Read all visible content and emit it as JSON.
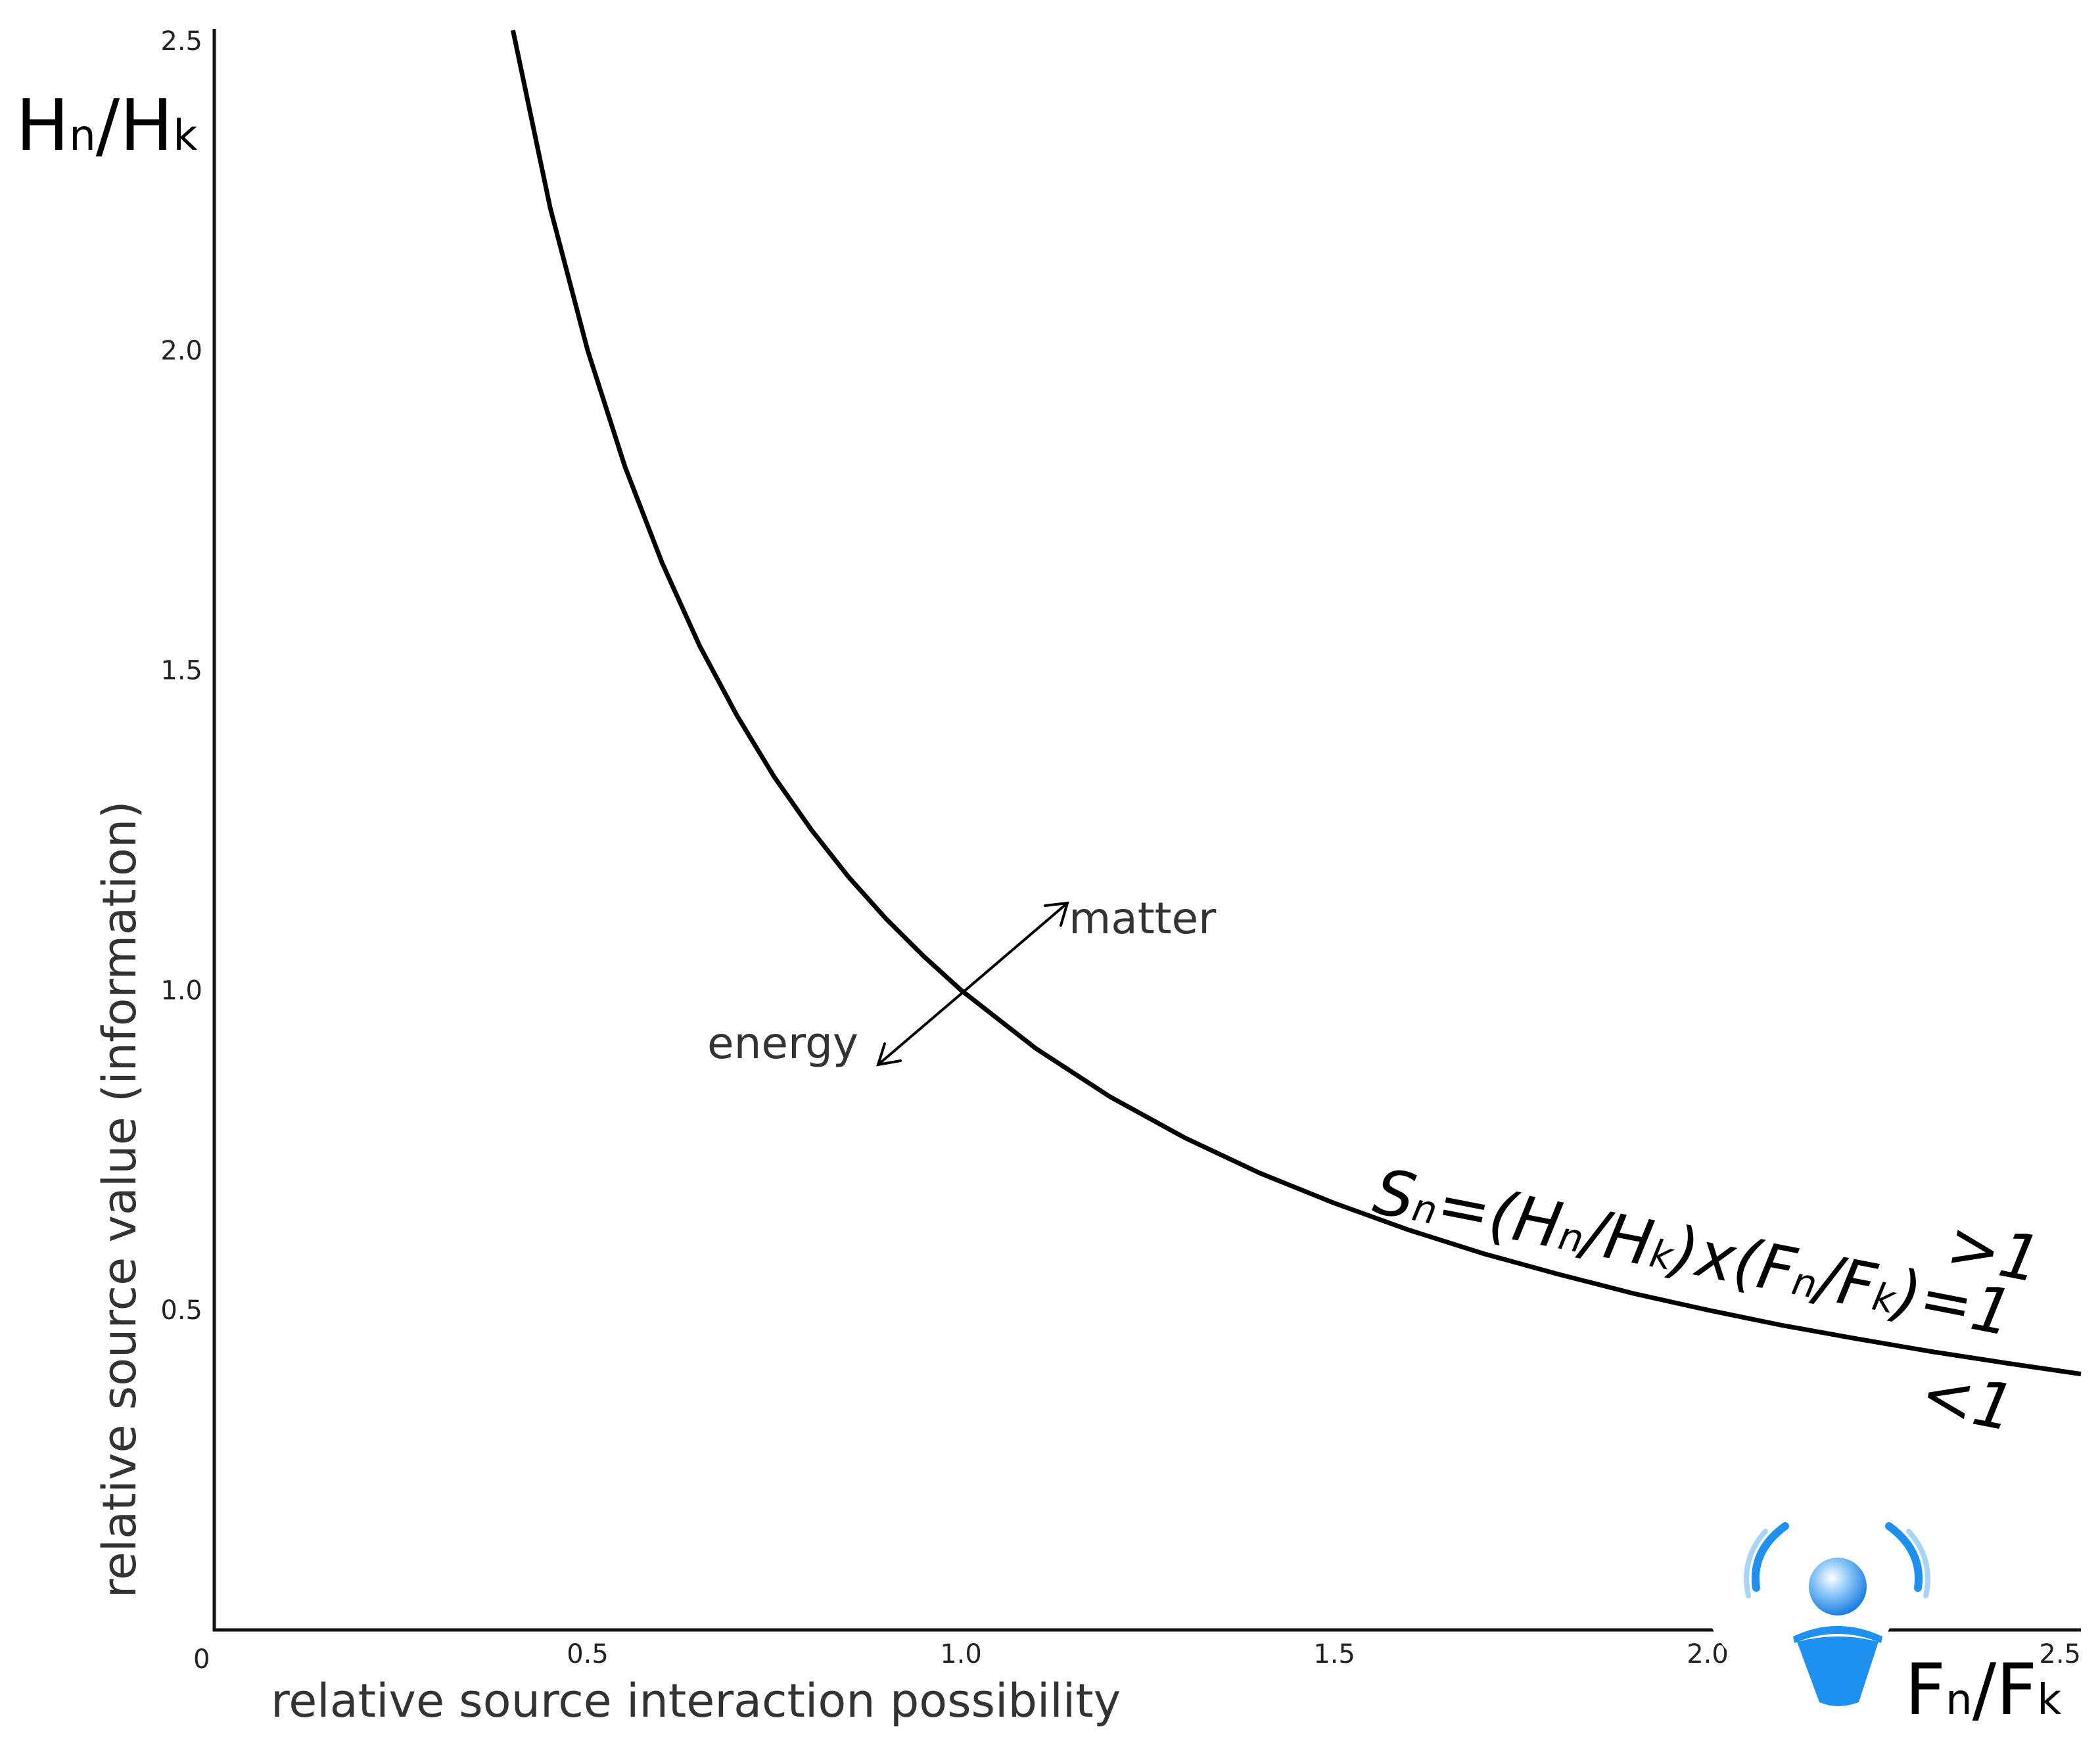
{
  "chart_data": {
    "type": "line",
    "title": "",
    "xlabel": "relative source interaction possibility",
    "ylabel": "relative source value (information)",
    "x_axis_symbol": {
      "main": "F",
      "sub": "n",
      "sep": "/",
      "main2": "F",
      "sub2": "k"
    },
    "y_axis_symbol": {
      "main": "H",
      "sub": "n",
      "sep": "/",
      "main2": "H",
      "sub2": "k"
    },
    "xlim": [
      0,
      2.5
    ],
    "ylim": [
      0,
      2.5
    ],
    "origin_label": "0",
    "x_ticks": [
      {
        "value": 0.5,
        "label": "0.5"
      },
      {
        "value": 1.0,
        "label": "1.0"
      },
      {
        "value": 1.5,
        "label": "1.5"
      },
      {
        "value": 2.0,
        "label": "2.0"
      },
      {
        "value": 2.5,
        "label": "2.5"
      }
    ],
    "y_ticks": [
      {
        "value": 0.5,
        "label": "0.5"
      },
      {
        "value": 1.0,
        "label": "1.0"
      },
      {
        "value": 1.5,
        "label": "1.5"
      },
      {
        "value": 2.0,
        "label": "2.0"
      },
      {
        "value": 2.5,
        "label": "2.5"
      }
    ],
    "grid": false,
    "series": [
      {
        "relation": "y = 1 / x",
        "x": [
          0.4,
          0.45,
          0.5,
          0.55,
          0.6,
          0.65,
          0.7,
          0.75,
          0.8,
          0.85,
          0.9,
          0.95,
          1.0,
          1.1,
          1.2,
          1.3,
          1.4,
          1.5,
          1.6,
          1.7,
          1.8,
          1.9,
          2.0,
          2.1,
          2.2,
          2.3,
          2.4,
          2.5
        ],
        "y": [
          2.5,
          2.222,
          2.0,
          1.818,
          1.667,
          1.538,
          1.429,
          1.333,
          1.25,
          1.176,
          1.111,
          1.053,
          1.0,
          0.909,
          0.833,
          0.769,
          0.714,
          0.667,
          0.625,
          0.588,
          0.556,
          0.526,
          0.5,
          0.476,
          0.455,
          0.435,
          0.417,
          0.4
        ],
        "color": "#000000"
      }
    ],
    "annotations": {
      "matter": "matter",
      "energy": "energy",
      "formula": {
        "s": "S",
        "s_sub": "n",
        "p1": "=(H",
        "sub1": "n",
        "p2": "/H",
        "sub2": "k",
        "p3": ")x(F",
        "sub3": "n",
        "p4": "/F",
        "sub4": "k",
        "p5": ")=1"
      },
      "gt": ">1",
      "lt": "<1"
    },
    "logo_colors": {
      "primary": "#1e90f0",
      "light": "#a8d4f8"
    }
  }
}
